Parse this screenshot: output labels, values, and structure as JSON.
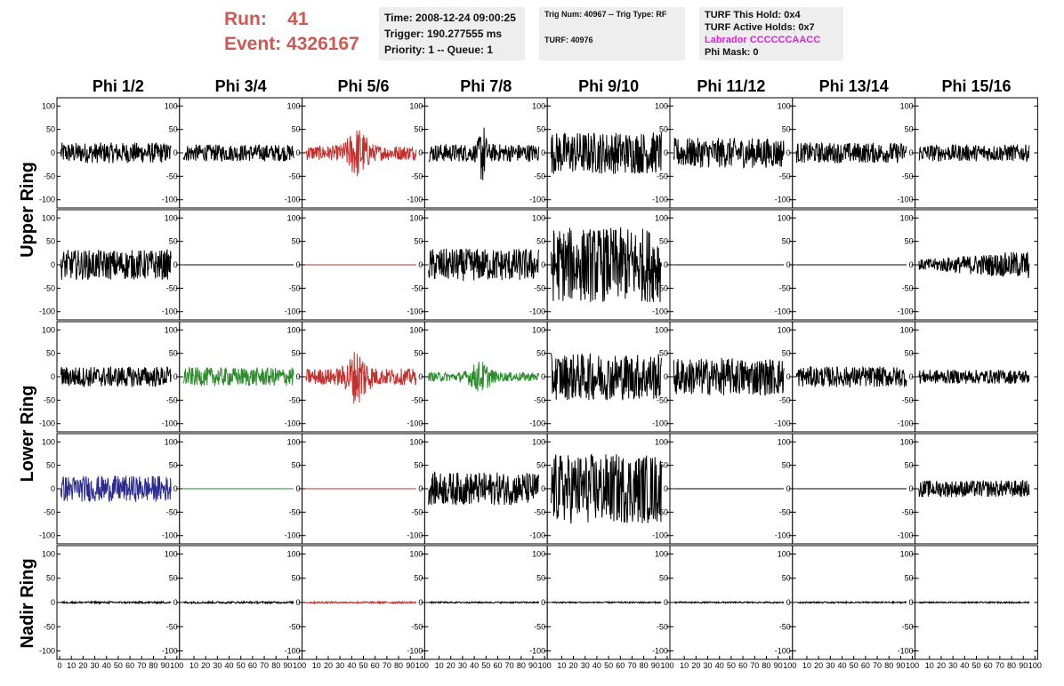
{
  "header": {
    "run_label": "Run:",
    "run_value": "41",
    "event_label": "Event:",
    "event_value": "4326167"
  },
  "info_box_1": {
    "time": "Time: 2008-12-24 09:00:25",
    "trigger": "Trigger: 190.277555 ms",
    "priority": "Priority: 1 -- Queue: 1"
  },
  "info_box_2": {
    "trig": "Trig Num: 40967 -- Trig Type: RF",
    "turf": "TURF: 40976"
  },
  "info_box_3": {
    "hold": "TURF This Hold: 0x4",
    "active": "TURF Active Holds: 0x7",
    "labrador": "Labrador CCCCCCAACC",
    "mask": "Phi Mask: 0"
  },
  "chart_data": {
    "type": "line",
    "columns": [
      "Phi 1/2",
      "Phi 3/4",
      "Phi 5/6",
      "Phi 7/8",
      "Phi 9/10",
      "Phi 11/12",
      "Phi 13/14",
      "Phi 15/16"
    ],
    "row_groups": [
      "Upper Ring",
      "Lower Ring",
      "Nadir Ring"
    ],
    "x_range": [
      0,
      100
    ],
    "y_range": [
      -110,
      110
    ],
    "x_ticks": [
      0,
      10,
      20,
      30,
      40,
      50,
      60,
      70,
      80,
      90,
      100
    ],
    "y_ticks": [
      -100,
      -50,
      0,
      50,
      100
    ],
    "colors": {
      "default": "#000000",
      "red": "#c0302c",
      "green": "#2b8a2b",
      "blue": "#2a2a8c"
    },
    "panels": [
      [
        {
          "amp": 22,
          "color": "default",
          "shape": "noise"
        },
        {
          "amp": 18,
          "color": "default",
          "shape": "noise"
        },
        {
          "amp": 45,
          "color": "red",
          "shape": "pulse"
        },
        {
          "amp": 32,
          "color": "default",
          "shape": "spike"
        },
        {
          "amp": 45,
          "color": "default",
          "shape": "noise"
        },
        {
          "amp": 32,
          "color": "default",
          "shape": "noise"
        },
        {
          "amp": 22,
          "color": "default",
          "shape": "noise"
        },
        {
          "amp": 18,
          "color": "default",
          "shape": "noise"
        }
      ],
      [
        {
          "amp": 32,
          "color": "default",
          "shape": "noise"
        },
        {
          "amp": 0,
          "color": "default",
          "shape": "flat"
        },
        {
          "amp": 0,
          "color": "red",
          "shape": "flat"
        },
        {
          "amp": 35,
          "color": "default",
          "shape": "noise"
        },
        {
          "amp": 80,
          "color": "default",
          "shape": "noise"
        },
        {
          "amp": 0,
          "color": "default",
          "shape": "flat"
        },
        {
          "amp": 0,
          "color": "default",
          "shape": "flat"
        },
        {
          "amp": 22,
          "color": "default",
          "shape": "growing"
        }
      ],
      [
        {
          "amp": 22,
          "color": "default",
          "shape": "noise"
        },
        {
          "amp": 20,
          "color": "green",
          "shape": "noise"
        },
        {
          "amp": 50,
          "color": "red",
          "shape": "pulse"
        },
        {
          "amp": 28,
          "color": "green",
          "shape": "pulse"
        },
        {
          "amp": 50,
          "color": "default",
          "shape": "noise"
        },
        {
          "amp": 40,
          "color": "default",
          "shape": "noise"
        },
        {
          "amp": 22,
          "color": "default",
          "shape": "noise"
        },
        {
          "amp": 15,
          "color": "default",
          "shape": "noise"
        }
      ],
      [
        {
          "amp": 28,
          "color": "blue",
          "shape": "noise"
        },
        {
          "amp": 0,
          "color": "green",
          "shape": "flat"
        },
        {
          "amp": 0,
          "color": "red",
          "shape": "flat"
        },
        {
          "amp": 35,
          "color": "default",
          "shape": "noise"
        },
        {
          "amp": 75,
          "color": "default",
          "shape": "noise"
        },
        {
          "amp": 0,
          "color": "default",
          "shape": "flat"
        },
        {
          "amp": 0,
          "color": "default",
          "shape": "flat"
        },
        {
          "amp": 18,
          "color": "default",
          "shape": "noise"
        }
      ],
      [
        {
          "amp": 2,
          "color": "default",
          "shape": "noise"
        },
        {
          "amp": 2,
          "color": "default",
          "shape": "noise"
        },
        {
          "amp": 2,
          "color": "red",
          "shape": "noise"
        },
        {
          "amp": 1.5,
          "color": "default",
          "shape": "noise"
        },
        {
          "amp": 1.5,
          "color": "default",
          "shape": "noise"
        },
        {
          "amp": 1.5,
          "color": "default",
          "shape": "noise"
        },
        {
          "amp": 1.5,
          "color": "default",
          "shape": "noise"
        },
        {
          "amp": 1.5,
          "color": "default",
          "shape": "noise"
        }
      ]
    ]
  }
}
